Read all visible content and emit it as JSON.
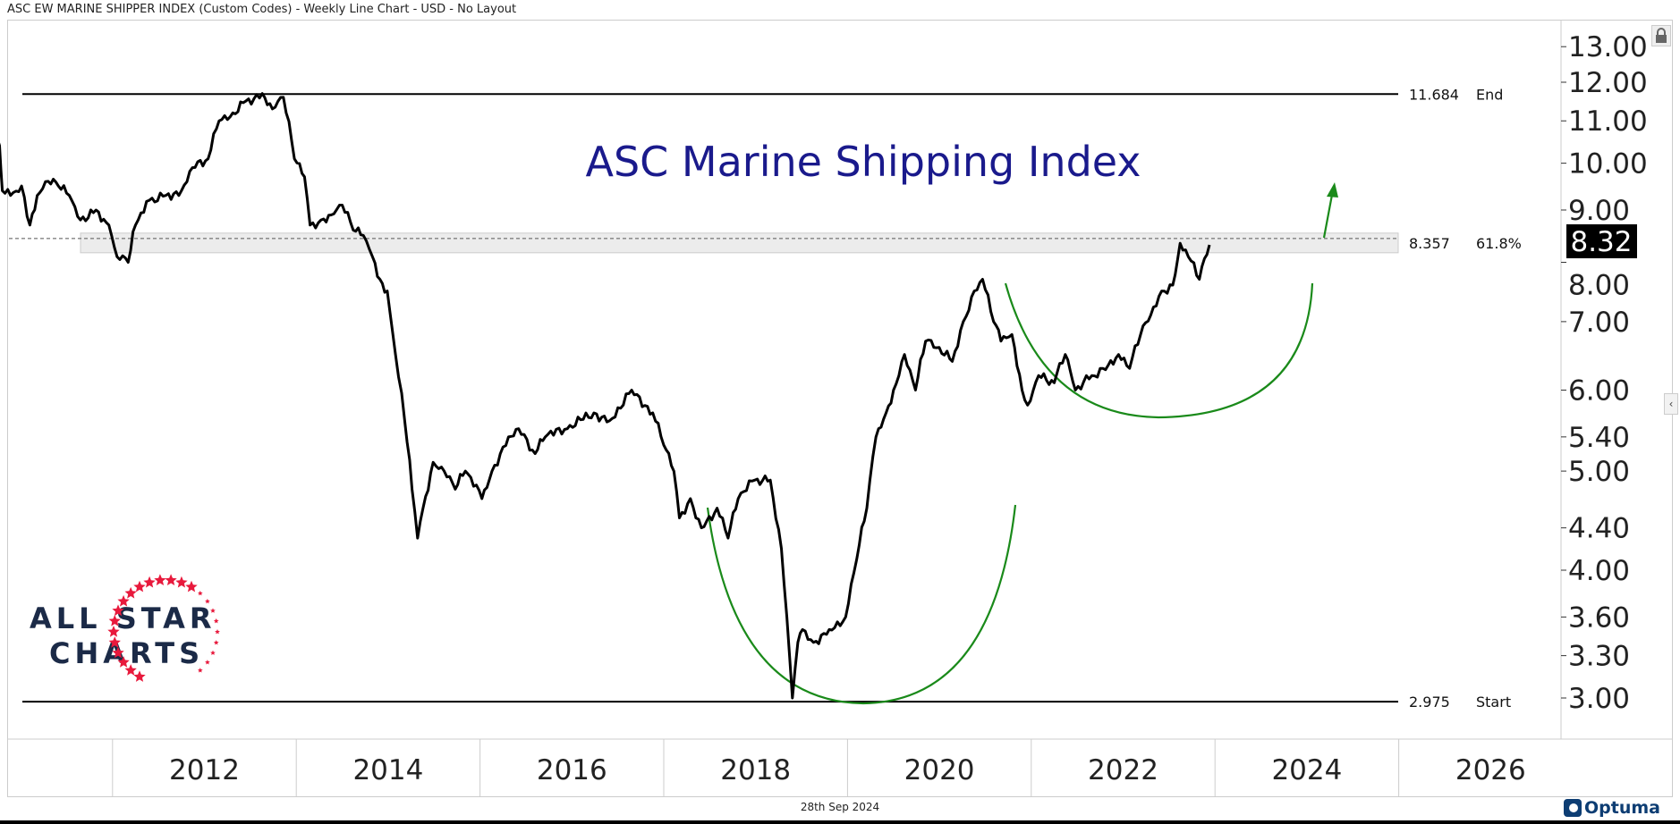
{
  "header": {
    "title": "ASC EW MARINE SHIPPER INDEX (Custom Codes) - Weekly Line Chart - USD - No Layout"
  },
  "footer": {
    "date": "28th Sep 2024",
    "brand": "Optuma"
  },
  "logo": {
    "line1": "ALL STAR",
    "line2": "CHARTS"
  },
  "colors": {
    "line": "#000000",
    "title": "#1a1a8c",
    "arc": "#1a8a1a",
    "star": "#e8193c",
    "logo_text": "#1b2a47"
  },
  "chart_data": {
    "type": "line",
    "title": "ASC Marine Shipping Index",
    "xlabel": "",
    "ylabel": "",
    "y_scale": "log",
    "ylim": [
      2.7,
      13.6
    ],
    "xlim": [
      2010.0,
      2026.9
    ],
    "y_ticks": [
      "13.00",
      "12.00",
      "11.00",
      "10.00",
      "9.00",
      "8.00",
      "7.00",
      "6.00",
      "5.40",
      "5.00",
      "4.40",
      "4.00",
      "3.60",
      "3.30",
      "3.00"
    ],
    "x_ticks": [
      "2012",
      "2014",
      "2016",
      "2018",
      "2020",
      "2022",
      "2024",
      "2026"
    ],
    "last_value": "8.32",
    "levels": [
      {
        "value": 11.684,
        "label": "11.684",
        "tag": "End"
      },
      {
        "value": 8.357,
        "label": "8.357",
        "tag": "61.8%"
      },
      {
        "value": 2.975,
        "label": "2.975",
        "tag": "Start"
      }
    ],
    "series": [
      {
        "name": "ASC EW MARINE SHIPPER INDEX",
        "points": [
          [
            2010.05,
            10.7
          ],
          [
            2010.19,
            11.0
          ],
          [
            2010.31,
            11.3
          ],
          [
            2010.45,
            11.8
          ],
          [
            2010.6,
            11.1
          ],
          [
            2010.68,
            11.0
          ],
          [
            2010.77,
            10.4
          ],
          [
            2010.8,
            9.4
          ],
          [
            2010.89,
            9.3
          ],
          [
            2011.01,
            9.5
          ],
          [
            2011.1,
            8.7
          ],
          [
            2011.18,
            9.3
          ],
          [
            2011.3,
            9.6
          ],
          [
            2011.41,
            9.5
          ],
          [
            2011.53,
            9.3
          ],
          [
            2011.65,
            8.8
          ],
          [
            2011.82,
            9.0
          ],
          [
            2011.96,
            8.7
          ],
          [
            2012.05,
            8.1
          ],
          [
            2012.17,
            8.0
          ],
          [
            2012.25,
            8.7
          ],
          [
            2012.4,
            9.2
          ],
          [
            2012.58,
            9.3
          ],
          [
            2012.75,
            9.4
          ],
          [
            2012.87,
            9.9
          ],
          [
            2013.04,
            10.1
          ],
          [
            2013.16,
            11.0
          ],
          [
            2013.28,
            11.1
          ],
          [
            2013.45,
            11.5
          ],
          [
            2013.63,
            11.7
          ],
          [
            2013.74,
            11.3
          ],
          [
            2013.86,
            11.6
          ],
          [
            2013.98,
            10.1
          ],
          [
            2014.09,
            9.7
          ],
          [
            2014.15,
            8.7
          ],
          [
            2014.27,
            8.8
          ],
          [
            2014.38,
            8.9
          ],
          [
            2014.5,
            9.1
          ],
          [
            2014.62,
            8.6
          ],
          [
            2014.73,
            8.5
          ],
          [
            2014.83,
            8.1
          ],
          [
            2014.91,
            7.7
          ],
          [
            2014.99,
            7.5
          ],
          [
            2015.08,
            6.5
          ],
          [
            2015.18,
            5.6
          ],
          [
            2015.26,
            4.8
          ],
          [
            2015.32,
            4.3
          ],
          [
            2015.38,
            4.6
          ],
          [
            2015.49,
            5.1
          ],
          [
            2015.61,
            5.0
          ],
          [
            2015.73,
            4.8
          ],
          [
            2015.84,
            5.0
          ],
          [
            2016.02,
            4.7
          ],
          [
            2016.13,
            5.0
          ],
          [
            2016.31,
            5.4
          ],
          [
            2016.42,
            5.5
          ],
          [
            2016.6,
            5.2
          ],
          [
            2016.71,
            5.4
          ],
          [
            2016.95,
            5.5
          ],
          [
            2017.24,
            5.7
          ],
          [
            2017.41,
            5.6
          ],
          [
            2017.65,
            6.0
          ],
          [
            2017.88,
            5.7
          ],
          [
            2018.0,
            5.3
          ],
          [
            2018.11,
            5.0
          ],
          [
            2018.17,
            4.5
          ],
          [
            2018.29,
            4.7
          ],
          [
            2018.41,
            4.4
          ],
          [
            2018.58,
            4.6
          ],
          [
            2018.7,
            4.3
          ],
          [
            2018.81,
            4.7
          ],
          [
            2018.99,
            4.9
          ],
          [
            2019.16,
            4.9
          ],
          [
            2019.28,
            4.2
          ],
          [
            2019.34,
            3.6
          ],
          [
            2019.4,
            3.0
          ],
          [
            2019.46,
            3.4
          ],
          [
            2019.51,
            3.5
          ],
          [
            2019.63,
            3.4
          ],
          [
            2019.8,
            3.5
          ],
          [
            2019.98,
            3.6
          ],
          [
            2020.1,
            4.1
          ],
          [
            2020.21,
            4.6
          ],
          [
            2020.31,
            5.4
          ],
          [
            2020.42,
            5.7
          ],
          [
            2020.5,
            6.0
          ],
          [
            2020.62,
            6.5
          ],
          [
            2020.74,
            6.0
          ],
          [
            2020.85,
            6.7
          ],
          [
            2020.97,
            6.6
          ],
          [
            2021.14,
            6.4
          ],
          [
            2021.26,
            7.0
          ],
          [
            2021.38,
            7.5
          ],
          [
            2021.47,
            7.7
          ],
          [
            2021.59,
            7.0
          ],
          [
            2021.67,
            6.7
          ],
          [
            2021.79,
            6.8
          ],
          [
            2021.9,
            6.0
          ],
          [
            2021.96,
            5.8
          ],
          [
            2022.08,
            6.2
          ],
          [
            2022.25,
            6.1
          ],
          [
            2022.37,
            6.5
          ],
          [
            2022.48,
            6.0
          ],
          [
            2022.66,
            6.2
          ],
          [
            2022.78,
            6.3
          ],
          [
            2022.95,
            6.5
          ],
          [
            2023.07,
            6.3
          ],
          [
            2023.19,
            6.8
          ],
          [
            2023.3,
            7.1
          ],
          [
            2023.42,
            7.5
          ],
          [
            2023.54,
            7.6
          ],
          [
            2023.62,
            8.35
          ],
          [
            2023.71,
            8.1
          ],
          [
            2023.83,
            7.7
          ],
          [
            2023.94,
            8.32
          ]
        ]
      }
    ]
  }
}
